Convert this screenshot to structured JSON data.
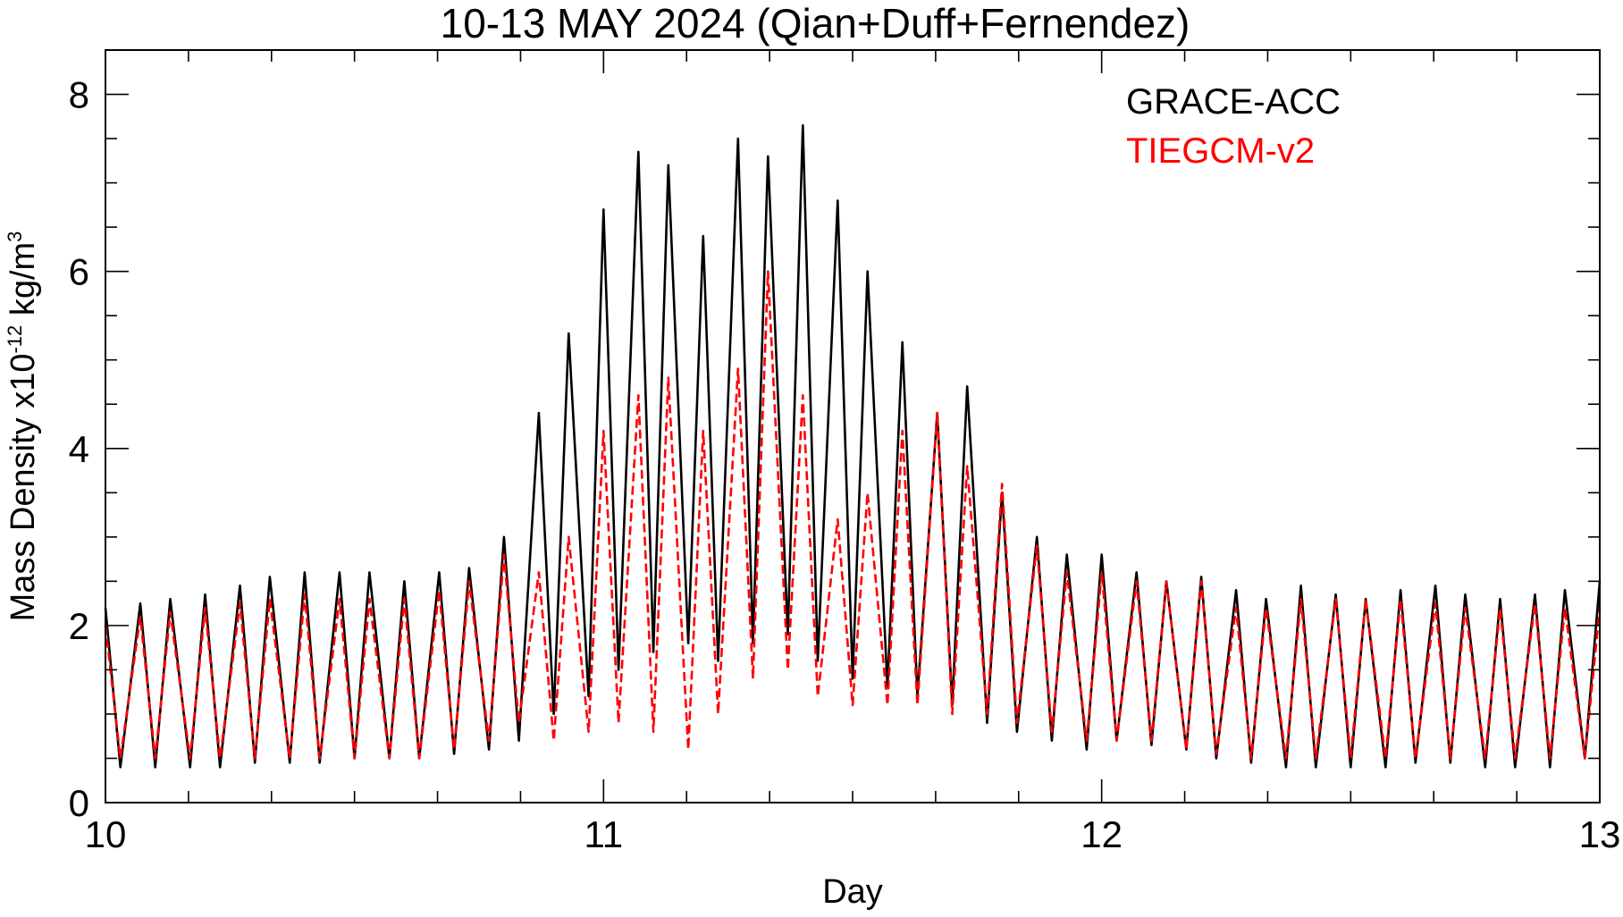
{
  "chart_data": {
    "type": "line",
    "title": "10-13 MAY 2024 (Qian+Duff+Fernendez)",
    "xlabel": "Day",
    "ylabel": "Mass Density x10",
    "ylabel_exponent": "-12",
    "ylabel_unit": " kg/m",
    "ylabel_unit_exponent": "3",
    "xlim": [
      10,
      13
    ],
    "ylim": [
      0,
      8.5
    ],
    "x_ticks": [
      10,
      11,
      12,
      13
    ],
    "x_tick_labels": [
      "10",
      "11",
      "12",
      "13"
    ],
    "x_minor_step": 0.166667,
    "y_ticks": [
      0,
      2,
      4,
      6,
      8
    ],
    "y_tick_labels": [
      "0",
      "2",
      "4",
      "6",
      "8"
    ],
    "y_minor_step": 0.5,
    "grid": false,
    "legend_position": "top-right",
    "series": [
      {
        "name": "GRACE-ACC",
        "color": "#000000",
        "style": "solid",
        "x": [
          10.0,
          10.03,
          10.07,
          10.1,
          10.13,
          10.17,
          10.2,
          10.23,
          10.27,
          10.3,
          10.33,
          10.37,
          10.4,
          10.43,
          10.47,
          10.5,
          10.53,
          10.57,
          10.6,
          10.63,
          10.67,
          10.7,
          10.73,
          10.77,
          10.8,
          10.83,
          10.87,
          10.9,
          10.93,
          10.97,
          11.0,
          11.03,
          11.07,
          11.1,
          11.13,
          11.17,
          11.2,
          11.23,
          11.27,
          11.3,
          11.33,
          11.37,
          11.4,
          11.43,
          11.47,
          11.5,
          11.53,
          11.57,
          11.6,
          11.63,
          11.67,
          11.7,
          11.73,
          11.77,
          11.8,
          11.83,
          11.87,
          11.9,
          11.93,
          11.97,
          12.0,
          12.03,
          12.07,
          12.1,
          12.13,
          12.17,
          12.2,
          12.23,
          12.27,
          12.3,
          12.33,
          12.37,
          12.4,
          12.43,
          12.47,
          12.5,
          12.53,
          12.57,
          12.6,
          12.63,
          12.67,
          12.7,
          12.73,
          12.77,
          12.8,
          12.83,
          12.87,
          12.9,
          12.93,
          12.97,
          13.0
        ],
        "y": [
          2.2,
          0.4,
          2.25,
          0.4,
          2.3,
          0.4,
          2.35,
          0.4,
          2.45,
          0.45,
          2.55,
          0.45,
          2.6,
          0.45,
          2.6,
          0.5,
          2.6,
          0.5,
          2.5,
          0.5,
          2.6,
          0.55,
          2.65,
          0.6,
          3.0,
          0.7,
          4.4,
          1.0,
          5.3,
          1.2,
          6.7,
          1.5,
          7.35,
          1.7,
          7.2,
          1.8,
          6.4,
          1.6,
          7.5,
          1.8,
          7.3,
          1.9,
          7.65,
          1.6,
          6.8,
          1.4,
          6.0,
          1.3,
          5.2,
          1.2,
          4.4,
          1.1,
          4.7,
          0.9,
          3.5,
          0.8,
          3.0,
          0.7,
          2.8,
          0.6,
          2.8,
          0.7,
          2.6,
          0.65,
          2.5,
          0.6,
          2.55,
          0.5,
          2.4,
          0.45,
          2.3,
          0.4,
          2.45,
          0.4,
          2.35,
          0.4,
          2.3,
          0.4,
          2.4,
          0.45,
          2.45,
          0.45,
          2.35,
          0.4,
          2.3,
          0.4,
          2.35,
          0.4,
          2.4,
          0.5,
          2.5
        ]
      },
      {
        "name": "TIEGCM-v2",
        "color": "#ff0000",
        "style": "dashed",
        "x": [
          10.0,
          10.03,
          10.07,
          10.1,
          10.13,
          10.17,
          10.2,
          10.23,
          10.27,
          10.3,
          10.33,
          10.37,
          10.4,
          10.43,
          10.47,
          10.5,
          10.53,
          10.57,
          10.6,
          10.63,
          10.67,
          10.7,
          10.73,
          10.77,
          10.8,
          10.83,
          10.87,
          10.9,
          10.93,
          10.97,
          11.0,
          11.03,
          11.07,
          11.1,
          11.13,
          11.17,
          11.2,
          11.23,
          11.27,
          11.3,
          11.33,
          11.37,
          11.4,
          11.43,
          11.47,
          11.5,
          11.53,
          11.57,
          11.6,
          11.63,
          11.67,
          11.7,
          11.73,
          11.77,
          11.8,
          11.83,
          11.87,
          11.9,
          11.93,
          11.97,
          12.0,
          12.03,
          12.07,
          12.1,
          12.13,
          12.17,
          12.2,
          12.23,
          12.27,
          12.3,
          12.33,
          12.37,
          12.4,
          12.43,
          12.47,
          12.5,
          12.53,
          12.57,
          12.6,
          12.63,
          12.67,
          12.7,
          12.73,
          12.77,
          12.8,
          12.83,
          12.87,
          12.9,
          12.93,
          12.97,
          13.0
        ],
        "y": [
          2.0,
          0.5,
          2.1,
          0.5,
          2.15,
          0.5,
          2.2,
          0.5,
          2.25,
          0.5,
          2.3,
          0.5,
          2.35,
          0.5,
          2.3,
          0.5,
          2.3,
          0.5,
          2.3,
          0.5,
          2.4,
          0.6,
          2.5,
          0.7,
          2.8,
          0.9,
          2.6,
          0.7,
          3.0,
          0.8,
          4.2,
          0.9,
          4.6,
          0.8,
          4.8,
          0.6,
          4.2,
          1.0,
          4.9,
          1.4,
          6.0,
          1.5,
          4.6,
          1.2,
          3.2,
          1.1,
          3.5,
          1.1,
          4.2,
          1.1,
          4.4,
          1.0,
          3.8,
          1.0,
          3.6,
          0.9,
          2.9,
          0.8,
          2.6,
          0.7,
          2.6,
          0.7,
          2.5,
          0.7,
          2.5,
          0.6,
          2.5,
          0.55,
          2.2,
          0.5,
          2.2,
          0.5,
          2.3,
          0.5,
          2.3,
          0.5,
          2.3,
          0.5,
          2.3,
          0.5,
          2.25,
          0.5,
          2.2,
          0.5,
          2.2,
          0.5,
          2.25,
          0.5,
          2.2,
          0.5,
          2.2
        ]
      }
    ]
  }
}
